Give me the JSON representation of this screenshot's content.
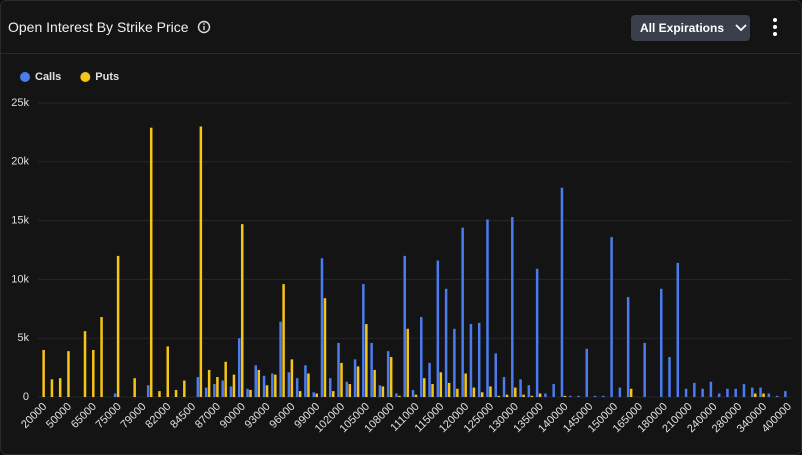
{
  "chart_data": {
    "type": "bar",
    "title": "Open Interest By Strike Price",
    "categories": [
      "20000",
      null,
      null,
      "50000",
      null,
      null,
      "65000",
      null,
      null,
      "75000",
      null,
      null,
      "79000",
      null,
      null,
      "82000",
      null,
      null,
      "84500",
      null,
      null,
      "87000",
      null,
      null,
      "90000",
      null,
      null,
      "93000",
      null,
      null,
      "96000",
      null,
      null,
      "99000",
      null,
      null,
      "102000",
      null,
      null,
      "105000",
      null,
      null,
      "108000",
      null,
      null,
      "111000",
      null,
      null,
      "115000",
      null,
      null,
      "120000",
      null,
      null,
      "125000",
      null,
      null,
      "130000",
      null,
      null,
      "135000",
      null,
      null,
      "140000",
      null,
      null,
      "145000",
      null,
      null,
      "150000",
      null,
      null,
      "165000",
      null,
      null,
      "180000",
      null,
      null,
      "210000",
      null,
      null,
      "240000",
      null,
      null,
      "280000",
      null,
      null,
      "340000",
      null,
      null,
      "400000"
    ],
    "series": [
      {
        "name": "Calls",
        "color": "#4a7cf0",
        "values": [
          0,
          0,
          0,
          0,
          0,
          0,
          0,
          0,
          0,
          300,
          0,
          0,
          0,
          1000,
          0,
          0,
          0,
          0,
          0,
          1700,
          800,
          1100,
          1400,
          900,
          5000,
          700,
          2700,
          1800,
          2000,
          6400,
          2100,
          1600,
          2700,
          400,
          11800,
          1600,
          4600,
          1300,
          3200,
          9600,
          4600,
          1000,
          3900,
          300,
          12000,
          600,
          6800,
          2900,
          11600,
          9200,
          5800,
          14400,
          6200,
          6300,
          15100,
          3700,
          1700,
          15300,
          1500,
          1000,
          10900,
          300,
          1100,
          17800,
          100,
          100,
          4100,
          100,
          100,
          13600,
          800,
          8500,
          0,
          4600,
          0,
          9200,
          3400,
          11400,
          700,
          1200,
          700,
          1300,
          300,
          700,
          700,
          1100,
          800,
          800,
          300,
          100,
          500
        ]
      },
      {
        "name": "Puts",
        "color": "#f5c518",
        "values": [
          4000,
          1500,
          1600,
          3900,
          0,
          5600,
          4000,
          6800,
          0,
          12000,
          0,
          1600,
          0,
          22900,
          500,
          4300,
          600,
          1400,
          0,
          23000,
          2300,
          1700,
          3000,
          1900,
          14700,
          600,
          2300,
          1000,
          1900,
          9600,
          3200,
          500,
          2000,
          300,
          8400,
          500,
          2900,
          1100,
          2600,
          6200,
          2300,
          900,
          3400,
          100,
          5800,
          200,
          1600,
          1100,
          2100,
          1200,
          700,
          2000,
          800,
          400,
          900,
          100,
          200,
          800,
          200,
          100,
          300,
          0,
          0,
          100,
          0,
          0,
          0,
          0,
          0,
          0,
          0,
          700,
          0,
          0,
          0,
          0,
          0,
          0,
          0,
          0,
          0,
          0,
          0,
          0,
          0,
          0,
          300,
          300,
          0,
          0,
          0
        ]
      }
    ],
    "ylim": [
      0,
      25000
    ],
    "yticks": [
      0,
      {
        "value": 5000,
        "label": "5k"
      },
      {
        "value": 10000,
        "label": "10k"
      },
      {
        "value": 15000,
        "label": "15k"
      },
      {
        "value": 20000,
        "label": "20k"
      },
      {
        "value": 25000,
        "label": "25k"
      }
    ],
    "grid": true,
    "legend": "top-left"
  },
  "controls": {
    "dropdown": "All Expirations"
  }
}
